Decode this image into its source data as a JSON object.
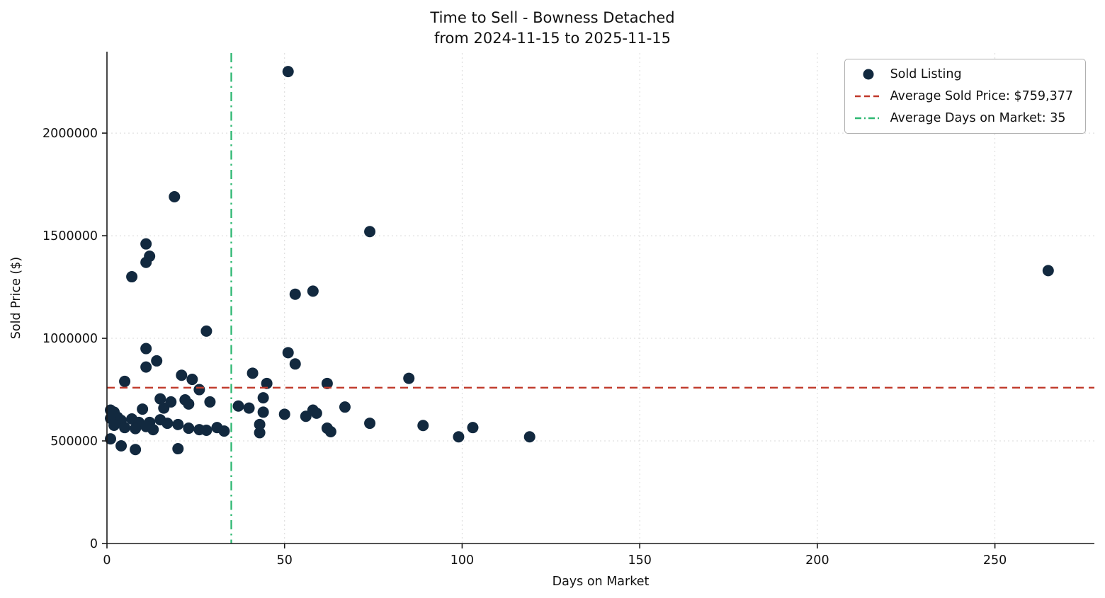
{
  "chart_data": {
    "type": "scatter",
    "title": "Time to Sell - Bowness Detached",
    "subtitle": "from 2024-11-15 to 2025-11-15",
    "xlabel": "Days on Market",
    "ylabel": "Sold Price ($)",
    "xlim": [
      0,
      278
    ],
    "ylim": [
      0,
      2390000
    ],
    "x_ticks": [
      0,
      50,
      100,
      150,
      200,
      250
    ],
    "y_ticks": [
      0,
      500000,
      1000000,
      1500000,
      2000000
    ],
    "grid": true,
    "legend_position": "upper right",
    "avg_price": 759377,
    "avg_days": 35,
    "legend": [
      {
        "label": "Sold Listing",
        "type": "marker"
      },
      {
        "label": "Average Sold Price: $759,377",
        "type": "dashed-line"
      },
      {
        "label": "Average Days on Market: 35",
        "type": "dashdot-line"
      }
    ],
    "colors": {
      "point": "#12293f",
      "avg_price": "#c0392b",
      "avg_days": "#2eb872",
      "grid": "#d9d9d9",
      "axis": "#1a1a1a",
      "text": "#111111",
      "legend_border": "#b0b0b0",
      "background": "#ffffff"
    },
    "points": [
      [
        51,
        2300000
      ],
      [
        19,
        1690000
      ],
      [
        74,
        1520000
      ],
      [
        11,
        1460000
      ],
      [
        12,
        1400000
      ],
      [
        11,
        1370000
      ],
      [
        7,
        1300000
      ],
      [
        265,
        1330000
      ],
      [
        58,
        1230000
      ],
      [
        53,
        1215000
      ],
      [
        28,
        1035000
      ],
      [
        11,
        950000
      ],
      [
        51,
        930000
      ],
      [
        53,
        875000
      ],
      [
        14,
        890000
      ],
      [
        11,
        860000
      ],
      [
        41,
        830000
      ],
      [
        21,
        820000
      ],
      [
        24,
        800000
      ],
      [
        85,
        805000
      ],
      [
        5,
        790000
      ],
      [
        45,
        780000
      ],
      [
        62,
        780000
      ],
      [
        26,
        750000
      ],
      [
        44,
        710000
      ],
      [
        15,
        705000
      ],
      [
        22,
        700000
      ],
      [
        18,
        690000
      ],
      [
        29,
        690000
      ],
      [
        23,
        680000
      ],
      [
        37,
        670000
      ],
      [
        67,
        665000
      ],
      [
        16,
        660000
      ],
      [
        40,
        660000
      ],
      [
        10,
        655000
      ],
      [
        58,
        650000
      ],
      [
        1,
        650000
      ],
      [
        2,
        640000
      ],
      [
        44,
        640000
      ],
      [
        59,
        635000
      ],
      [
        50,
        630000
      ],
      [
        56,
        620000
      ],
      [
        3,
        615000
      ],
      [
        1,
        610000
      ],
      [
        7,
        607000
      ],
      [
        15,
        603000
      ],
      [
        4,
        600000
      ],
      [
        9,
        590000
      ],
      [
        12,
        590000
      ],
      [
        17,
        586000
      ],
      [
        74,
        586000
      ],
      [
        20,
        580000
      ],
      [
        43,
        580000
      ],
      [
        2,
        576000
      ],
      [
        89,
        575000
      ],
      [
        11,
        570000
      ],
      [
        5,
        565000
      ],
      [
        31,
        565000
      ],
      [
        103,
        565000
      ],
      [
        23,
        562000
      ],
      [
        62,
        562000
      ],
      [
        8,
        560000
      ],
      [
        13,
        555000
      ],
      [
        26,
        555000
      ],
      [
        28,
        552000
      ],
      [
        33,
        548000
      ],
      [
        63,
        545000
      ],
      [
        43,
        540000
      ],
      [
        99,
        520000
      ],
      [
        119,
        520000
      ],
      [
        1,
        510000
      ],
      [
        4,
        476000
      ],
      [
        20,
        462000
      ],
      [
        8,
        458000
      ]
    ]
  }
}
